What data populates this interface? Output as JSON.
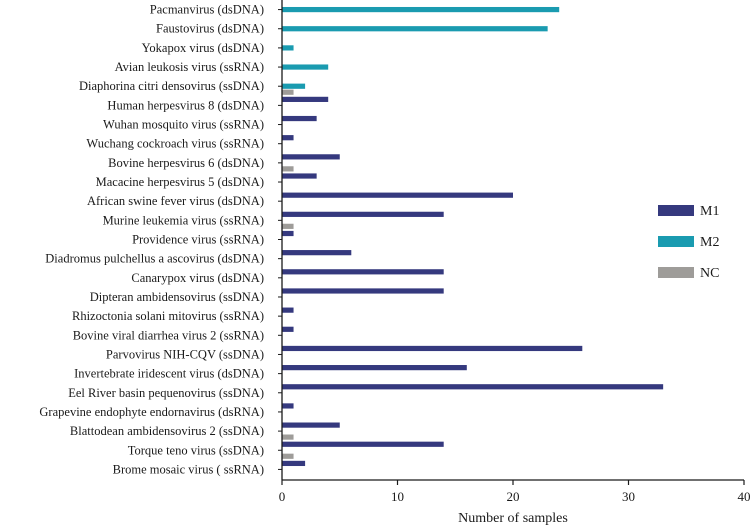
{
  "chart_data": {
    "type": "bar",
    "orientation": "horizontal",
    "xlabel": "Number of samples",
    "xlim": [
      0,
      40
    ],
    "xticks": [
      0,
      10,
      20,
      30,
      40
    ],
    "grid": false,
    "legend_position": "right",
    "categories": [
      "Pacmanvirus (dsDNA)",
      "Faustovirus (dsDNA)",
      "Yokapox virus (dsDNA)",
      "Avian leukosis virus (ssRNA)",
      "Diaphorina citri densovirus (ssDNA)",
      "Human herpesvirus 8 (dsDNA)",
      "Wuhan mosquito virus (ssRNA)",
      "Wuchang cockroach virus (ssRNA)",
      "Bovine herpesvirus 6 (dsDNA)",
      "Macacine herpesvirus 5 (dsDNA)",
      "African swine fever virus (dsDNA)",
      "Murine leukemia virus (ssRNA)",
      "Providence virus (ssRNA)",
      "Diadromus pulchellus a ascovirus (dsDNA)",
      "Canarypox virus (dsDNA)",
      "Dipteran ambidensovirus (ssDNA)",
      "Rhizoctonia solani mitovirus (ssRNA)",
      "Bovine viral diarrhea virus 2 (ssRNA)",
      "Parvovirus NIH-CQV (ssDNA)",
      "Invertebrate iridescent virus (dsDNA)",
      "Eel River basin pequenovirus (ssDNA)",
      "Grapevine endophyte endornavirus (dsRNA)",
      "Blattodean ambidensovirus 2 (ssDNA)",
      "Torque teno virus (ssDNA)",
      "Brome mosaic virus ( ssRNA)"
    ],
    "series": [
      {
        "name": "M1",
        "color": "#35397e",
        "values": [
          0,
          0,
          0,
          0,
          0,
          4,
          3,
          1,
          5,
          3,
          20,
          14,
          1,
          6,
          14,
          14,
          1,
          1,
          26,
          16,
          33,
          1,
          5,
          14,
          2
        ]
      },
      {
        "name": "M2",
        "color": "#1a9bb0",
        "values": [
          24,
          23,
          1,
          4,
          2,
          0,
          0,
          0,
          0,
          0,
          0,
          0,
          0,
          0,
          0,
          0,
          0,
          0,
          0,
          0,
          0,
          0,
          0,
          0,
          0
        ]
      },
      {
        "name": "NC",
        "color": "#9e9c99",
        "values": [
          0,
          0,
          0,
          0,
          1,
          0,
          0,
          0,
          1,
          0,
          0,
          1,
          0,
          0,
          0,
          0,
          0,
          0,
          0,
          0,
          0,
          0,
          1,
          1,
          0
        ]
      }
    ]
  }
}
